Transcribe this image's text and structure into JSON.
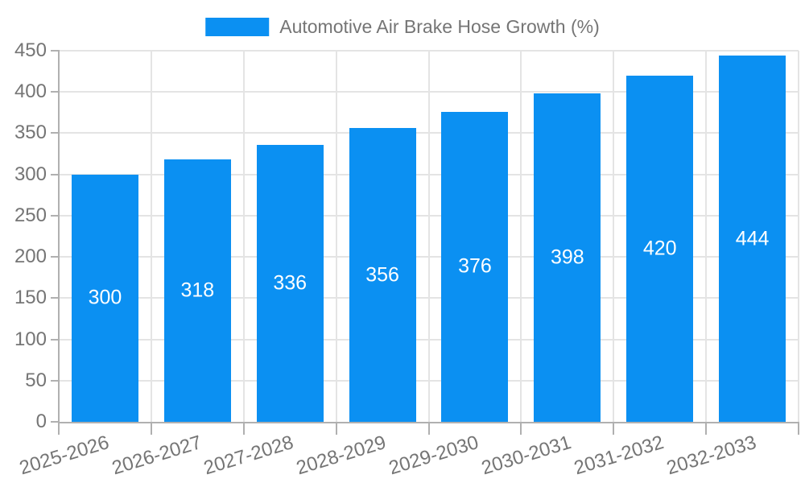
{
  "chart_data": {
    "type": "bar",
    "title": "Automotive Air Brake Hose Growth (%)",
    "legend": {
      "label": "Automotive Air Brake Hose Growth (%)",
      "position": "top-center"
    },
    "categories": [
      "2025-2026",
      "2026-2027",
      "2027-2028",
      "2028-2029",
      "2029-2030",
      "2030-2031",
      "2031-2032",
      "2032-2033"
    ],
    "series": [
      {
        "name": "Automotive Air Brake Hose Growth (%)",
        "values": [
          300,
          318,
          336,
          356,
          376,
          398,
          420,
          444
        ]
      }
    ],
    "values": [
      300,
      318,
      336,
      356,
      376,
      398,
      420,
      444
    ],
    "bar_value_labels": [
      "300",
      "318",
      "336",
      "356",
      "376",
      "398",
      "420",
      "444"
    ],
    "bar_value_labels_position": "inside-center",
    "xlabel": "",
    "ylabel": "",
    "ylim": [
      0,
      450
    ],
    "y_ticks": [
      0,
      50,
      100,
      150,
      200,
      250,
      300,
      350,
      400,
      450
    ],
    "x_label_rotation_deg": -17,
    "grid": true,
    "colors": {
      "bar": "#0b90f2",
      "bar_value_label": "#ffffff",
      "axis_text": "#757575",
      "grid_line": "#e4e4e4",
      "axis_line": "#b0b0b0",
      "background": "#ffffff"
    }
  }
}
